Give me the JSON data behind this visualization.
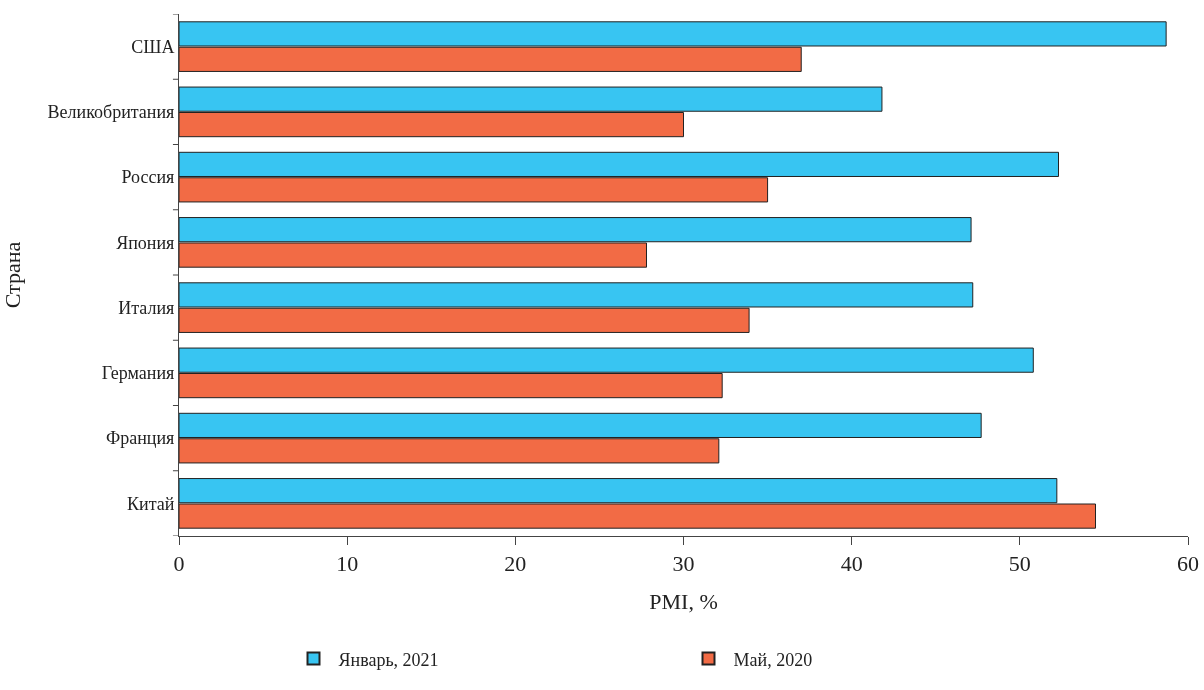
{
  "chart_data": {
    "type": "bar",
    "orientation": "horizontal",
    "categories": [
      "США",
      "Великобритания",
      "Россия",
      "Япония",
      "Италия",
      "Германия",
      "Франция",
      "Китай"
    ],
    "series": [
      {
        "name": "Январь, 2021",
        "color": "#38c5f2",
        "values": [
          58.7,
          41.8,
          52.3,
          47.1,
          47.2,
          50.8,
          47.7,
          52.2
        ]
      },
      {
        "name": "Май, 2020",
        "color": "#f26b45",
        "values": [
          37.0,
          30.0,
          35.0,
          27.8,
          33.9,
          32.3,
          32.1,
          54.5
        ]
      }
    ],
    "xlabel": "PMI, %",
    "ylabel": "Страна",
    "xlim": [
      0,
      60
    ],
    "xticks": [
      0,
      10,
      20,
      30,
      40,
      50,
      60
    ],
    "grid": false,
    "legend": "bottom"
  }
}
